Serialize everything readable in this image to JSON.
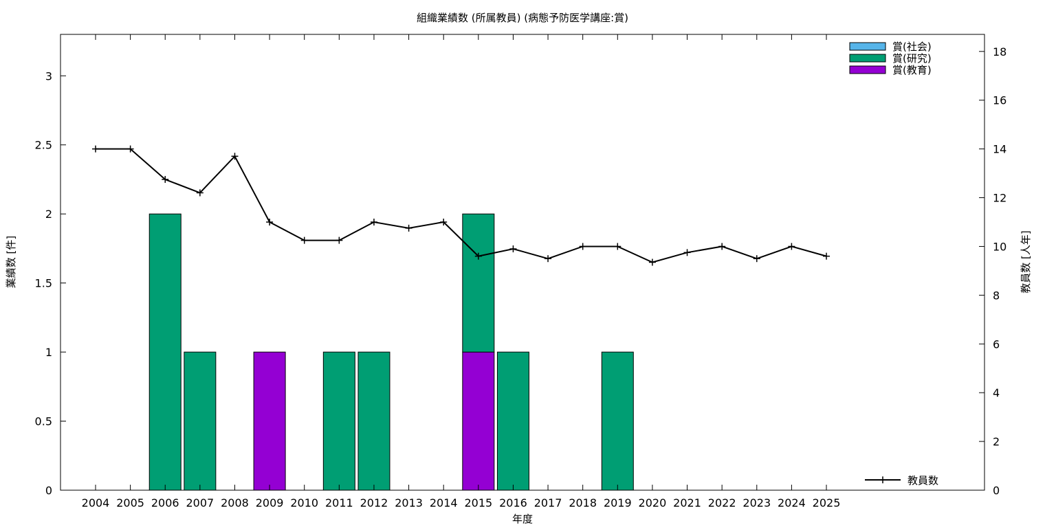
{
  "chart_data": {
    "type": "bar",
    "title": "組織業績数 (所属教員) (病態予防医学講座:賞)",
    "xlabel": "年度",
    "ylabel": "業績数 [件]",
    "y2label": "教員数 [人年]",
    "stacked": true,
    "categories": [
      "2004",
      "2005",
      "2006",
      "2007",
      "2008",
      "2009",
      "2010",
      "2011",
      "2012",
      "2013",
      "2014",
      "2015",
      "2016",
      "2017",
      "2018",
      "2019",
      "2020",
      "2021",
      "2022",
      "2023",
      "2024",
      "2025"
    ],
    "ylim": [
      0,
      3.3
    ],
    "yticks": [
      0,
      0.5,
      1,
      1.5,
      2,
      2.5,
      3
    ],
    "ytick_labels": [
      "0",
      "0.5",
      "1",
      "1.5",
      "2",
      "2.5",
      "3"
    ],
    "y2lim": [
      0,
      18.7
    ],
    "y2ticks": [
      0,
      2,
      4,
      6,
      8,
      10,
      12,
      14,
      16,
      18
    ],
    "legend_position": "top-right",
    "series": [
      {
        "name": "賞(社会)",
        "color": "#56b4e9",
        "values": [
          0,
          0,
          0,
          0,
          0,
          0,
          0,
          0,
          0,
          0,
          0,
          0,
          0,
          0,
          0,
          0,
          0,
          0,
          0,
          0,
          0,
          0
        ]
      },
      {
        "name": "賞(研究)",
        "color": "#009e73",
        "values": [
          0,
          0,
          2,
          1,
          0,
          0,
          0,
          1,
          1,
          0,
          0,
          1,
          1,
          0,
          0,
          1,
          0,
          0,
          0,
          0,
          0,
          0
        ]
      },
      {
        "name": "賞(教育)",
        "color": "#9400d3",
        "values": [
          0,
          0,
          0,
          0,
          0,
          1,
          0,
          0,
          0,
          0,
          0,
          1,
          0,
          0,
          0,
          0,
          0,
          0,
          0,
          0,
          0,
          0
        ]
      }
    ],
    "line_series": {
      "name": "教員数",
      "axis": "y2",
      "color": "#000000",
      "marker": "plus",
      "legend_position": "bottom-right",
      "values": [
        14.0,
        14.0,
        12.75,
        12.2,
        13.7,
        11.0,
        10.25,
        10.25,
        11.0,
        10.75,
        11.0,
        9.6,
        9.9,
        9.5,
        10.0,
        10.0,
        9.35,
        9.75,
        10.0,
        9.5,
        10.0,
        9.6
      ]
    }
  }
}
